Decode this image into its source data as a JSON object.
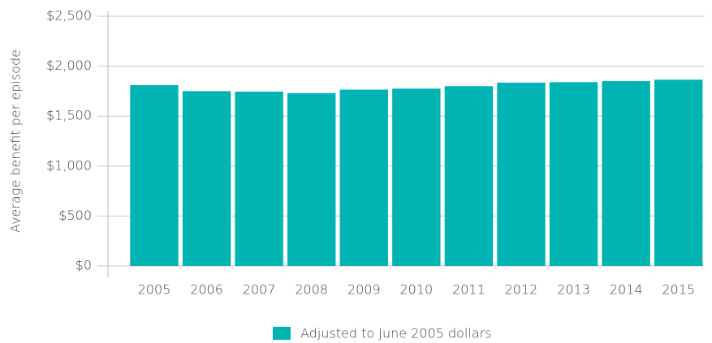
{
  "chart_data": {
    "type": "bar",
    "ylabel": "Average benefit per episode",
    "categories": [
      "2005",
      "2006",
      "2007",
      "2008",
      "2009",
      "2010",
      "2011",
      "2012",
      "2013",
      "2014",
      "2015"
    ],
    "series": [
      {
        "name": "Adjusted to June 2005 dollars",
        "color": "#00b4b4",
        "values": [
          1810,
          1750,
          1745,
          1730,
          1765,
          1775,
          1800,
          1835,
          1840,
          1850,
          1865
        ]
      }
    ],
    "ylim": [
      0,
      2500
    ],
    "yticks": [
      {
        "value": 0,
        "label": "$0"
      },
      {
        "value": 500,
        "label": "$500"
      },
      {
        "value": 1000,
        "label": "$1,000"
      },
      {
        "value": 1500,
        "label": "$1,500"
      },
      {
        "value": 2000,
        "label": "$2,000"
      },
      {
        "value": 2500,
        "label": "$2,500"
      }
    ],
    "grid": true,
    "legend": "bottom"
  }
}
